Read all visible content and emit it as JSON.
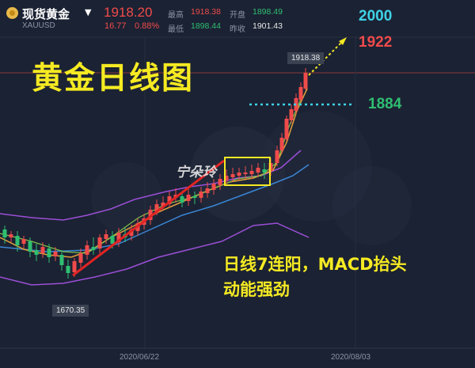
{
  "header": {
    "name": "现货黄金",
    "symbol": "XAUUSD",
    "price": "1918.20",
    "change": "16.77",
    "change_pct": "0.88%",
    "high_label": "最高",
    "high": "1918.38",
    "open_label": "开盘",
    "open": "1898.49",
    "low_label": "最低",
    "low": "1898.44",
    "prev_label": "昨收",
    "prev": "1901.43"
  },
  "title": "黄金日线图",
  "levels": {
    "target_top": "2000",
    "target_mid": "1922",
    "support": "1884"
  },
  "watermark": "宁朵玲",
  "annotation": {
    "line1": "日线7连阳，MACD抬头",
    "line2": "动能强劲"
  },
  "price_tags": {
    "low": "1670.35",
    "high": "1918.38"
  },
  "dates": [
    "2020/06/22",
    "2020/08/03"
  ],
  "colors": {
    "up": "#ef4b4b",
    "down": "#2fbf71",
    "accent": "#f5ea22",
    "target": "#3fd2e6"
  }
}
